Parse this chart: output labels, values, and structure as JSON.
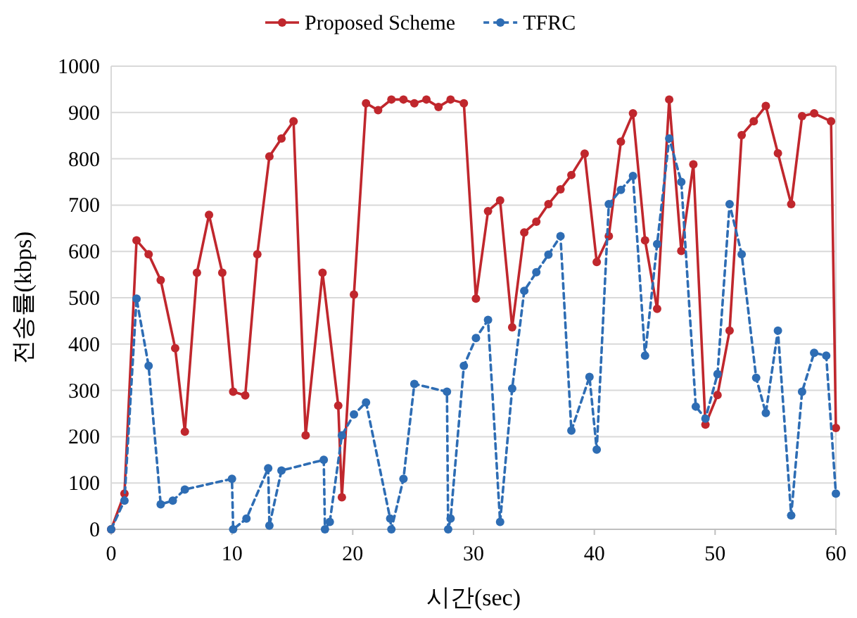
{
  "chart_data": {
    "type": "line",
    "xlabel": "시간(sec)",
    "ylabel": "전송률(kbps)",
    "xlim": [
      0,
      60
    ],
    "xticks": [
      0,
      10,
      20,
      30,
      40,
      50,
      60
    ],
    "ylim": [
      0,
      1000
    ],
    "yticks": [
      0,
      100,
      200,
      300,
      400,
      500,
      600,
      700,
      800,
      900,
      1000
    ],
    "grid": "y",
    "legend": "top",
    "marker": "circle",
    "series": [
      {
        "name": "Proposed Scheme",
        "color": "#c0272d",
        "line_style": "solid",
        "x": [
          0,
          1.1,
          2.1,
          3.1,
          4.1,
          5.3,
          6.1,
          7.1,
          8.1,
          9.2,
          10.1,
          11.1,
          12.1,
          13.1,
          14.1,
          15.1,
          16.1,
          17.5,
          18.8,
          19.1,
          20.1,
          21.1,
          22.1,
          23.2,
          24.2,
          25.1,
          26.1,
          27.1,
          28.1,
          29.2,
          30.2,
          31.2,
          32.2,
          33.2,
          34.2,
          35.2,
          36.2,
          37.2,
          38.1,
          39.2,
          40.2,
          41.2,
          42.2,
          43.2,
          44.2,
          45.2,
          46.2,
          47.2,
          48.2,
          49.2,
          50.2,
          51.2,
          52.2,
          53.2,
          54.2,
          55.2,
          56.3,
          57.2,
          58.2,
          59.6,
          60
        ],
        "values": [
          0,
          77,
          624,
          594,
          538,
          391,
          211,
          554,
          679,
          554,
          297,
          289,
          594,
          805,
          844,
          881,
          203,
          554,
          267,
          69,
          507,
          920,
          905,
          928,
          928,
          920,
          928,
          912,
          928,
          920,
          498,
          687,
          710,
          436,
          641,
          664,
          702,
          734,
          765,
          811,
          577,
          633,
          837,
          898,
          624,
          476,
          928,
          601,
          788,
          226,
          290,
          429,
          851,
          881,
          914,
          812,
          702,
          892,
          898,
          881,
          219
        ]
      },
      {
        "name": "TFRC",
        "color": "#2e6db4",
        "line_style": "dashed",
        "x": [
          0,
          1.1,
          2.1,
          3.1,
          4.1,
          5.1,
          6.1,
          10.0,
          10.1,
          11.2,
          13.0,
          13.1,
          14.1,
          17.6,
          17.7,
          18.1,
          19.1,
          20.1,
          21.1,
          23.1,
          23.2,
          24.2,
          25.1,
          27.8,
          27.9,
          28.1,
          29.2,
          30.2,
          31.2,
          32.2,
          33.2,
          34.2,
          35.2,
          36.2,
          37.2,
          38.1,
          39.6,
          40.2,
          41.2,
          42.2,
          43.2,
          44.2,
          45.2,
          46.2,
          47.2,
          48.4,
          49.2,
          50.2,
          51.2,
          52.2,
          53.4,
          54.2,
          55.2,
          56.3,
          57.2,
          58.2,
          59.2,
          60
        ],
        "values": [
          0,
          62,
          498,
          353,
          54,
          62,
          86,
          109,
          0,
          23,
          132,
          8,
          127,
          150,
          0,
          16,
          203,
          248,
          274,
          23,
          0,
          109,
          314,
          297,
          0,
          23,
          353,
          413,
          452,
          16,
          304,
          515,
          555,
          593,
          633,
          213,
          329,
          172,
          702,
          733,
          763,
          375,
          616,
          844,
          750,
          265,
          239,
          335,
          702,
          594,
          327,
          251,
          429,
          30,
          297,
          381,
          375,
          77
        ]
      }
    ]
  }
}
